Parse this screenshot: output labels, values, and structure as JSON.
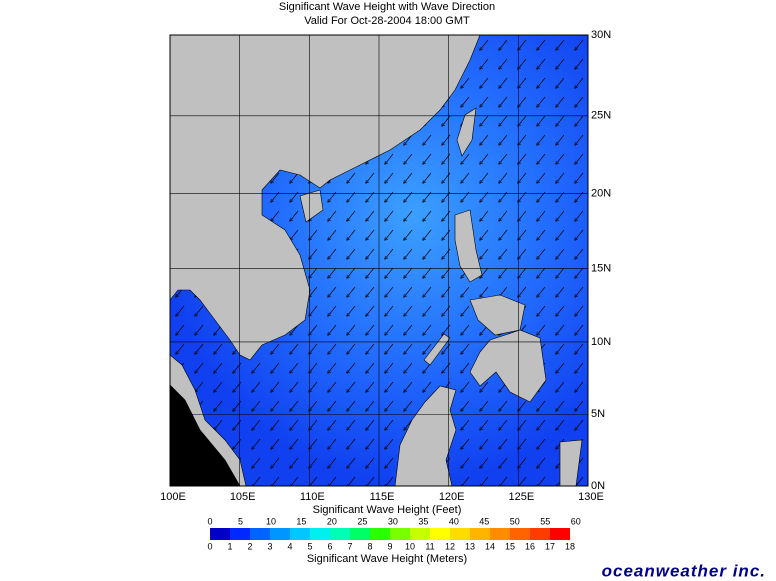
{
  "header": {
    "title": "Significant Wave Height with Wave Direction",
    "subtitle": "Valid For Oct-28-2004 18:00 GMT"
  },
  "map": {
    "lon_ticks": [
      {
        "value": 100,
        "label": "100E"
      },
      {
        "value": 105,
        "label": "105E"
      },
      {
        "value": 110,
        "label": "110E"
      },
      {
        "value": 115,
        "label": "115E"
      },
      {
        "value": 120,
        "label": "120E"
      },
      {
        "value": 125,
        "label": "125E"
      },
      {
        "value": 130,
        "label": "130E"
      }
    ],
    "lat_ticks": [
      {
        "value": 30,
        "label": "30N"
      },
      {
        "value": 25,
        "label": "25N"
      },
      {
        "value": 20,
        "label": "20N"
      },
      {
        "value": 15,
        "label": "15N"
      },
      {
        "value": 10,
        "label": "10N"
      },
      {
        "value": 5,
        "label": "5N"
      },
      {
        "value": 0,
        "label": "0N"
      }
    ],
    "lonlim": [
      100,
      130
    ],
    "latlim": [
      0,
      30
    ],
    "projection": "mercator",
    "grid": true
  },
  "colorbar": {
    "feet_title": "Significant Wave Height (Feet)",
    "meters_title": "Significant Wave Height (Meters)",
    "feet_ticks": [
      0,
      5,
      10,
      15,
      20,
      25,
      30,
      35,
      40,
      45,
      50,
      55,
      60
    ],
    "meter_ticks": [
      0,
      1,
      2,
      3,
      4,
      5,
      6,
      7,
      8,
      9,
      10,
      11,
      12,
      13,
      14,
      15,
      16,
      17,
      18
    ],
    "colors": [
      "#0000c8",
      "#0028ff",
      "#0064ff",
      "#0096ff",
      "#00c8ff",
      "#00f0f0",
      "#00ffb4",
      "#00ff64",
      "#28ff00",
      "#78ff00",
      "#c8ff00",
      "#ffff00",
      "#ffdc00",
      "#ffb400",
      "#ff8c00",
      "#ff6400",
      "#ff3c00",
      "#ff0000"
    ]
  },
  "footer": {
    "logo": "oceanweather inc."
  }
}
